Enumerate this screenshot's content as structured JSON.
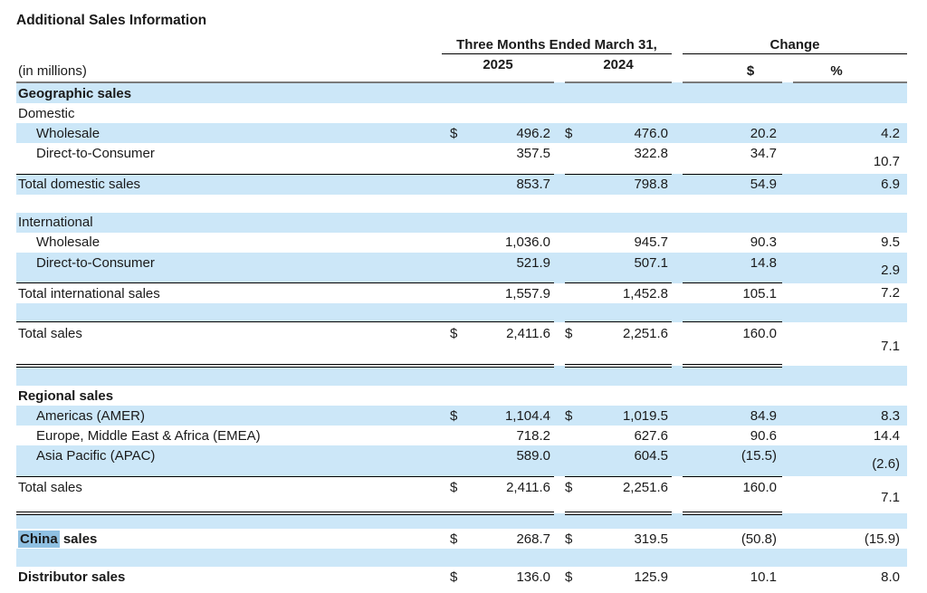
{
  "title": "Additional Sales Information",
  "colors": {
    "stripe": "#cce7f8",
    "china_highlight": "#8fc0e2",
    "header_rule": "#7a7a7a",
    "text": "#1a1a1a"
  },
  "table": {
    "period_header": "Three Months Ended March 31,",
    "change_header": "Change",
    "in_millions": "(in millions)",
    "year_2025": "2025",
    "year_2024": "2024",
    "dollar_header": "$",
    "percent_header": "%",
    "rows": [
      {
        "type": "section",
        "bg": "blue",
        "bold": true,
        "indent": 0,
        "label": "Geographic sales"
      },
      {
        "type": "data",
        "bg": "white",
        "indent": 0,
        "label": "Domestic"
      },
      {
        "type": "data",
        "bg": "blue",
        "indent": 1,
        "label": "Wholesale",
        "d1": "$",
        "v1": "496.2",
        "d2": "$",
        "v2": "476.0",
        "chg": "20.2",
        "pct": "4.2"
      },
      {
        "type": "ruled",
        "bg": "white",
        "indent": 1,
        "label": "Direct-to-Consumer",
        "v1": "357.5",
        "v2": "322.8",
        "chg": "34.7",
        "pct": "10.7"
      },
      {
        "type": "data",
        "bg": "blue",
        "indent": 0,
        "label": "Total domestic sales",
        "v1": "853.7",
        "v2": "798.8",
        "chg": "54.9",
        "pct": "6.9"
      },
      {
        "type": "blank",
        "bg": "white"
      },
      {
        "type": "data",
        "bg": "blue",
        "indent": 0,
        "label": "International"
      },
      {
        "type": "data",
        "bg": "white",
        "indent": 1,
        "label": "Wholesale",
        "v1": "1,036.0",
        "v2": "945.7",
        "chg": "90.3",
        "pct": "9.5"
      },
      {
        "type": "ruled",
        "bg": "blue",
        "indent": 1,
        "label": "Direct-to-Consumer",
        "v1": "521.9",
        "v2": "507.1",
        "chg": "14.8",
        "pct": "2.9"
      },
      {
        "type": "data",
        "bg": "white",
        "indent": 0,
        "label": "Total international sales",
        "v1": "1,557.9",
        "v2": "1,452.8",
        "chg": "105.1",
        "pct": "7.2"
      },
      {
        "type": "blank",
        "bg": "blue"
      },
      {
        "type": "grand",
        "bg": "white",
        "indent": 0,
        "label": "Total sales",
        "d1": "$",
        "v1": "2,411.6",
        "d2": "$",
        "v2": "2,251.6",
        "chg": "160.0",
        "pct": "7.1"
      },
      {
        "type": "blank",
        "bg": "blue"
      },
      {
        "type": "section",
        "bg": "white",
        "bold": true,
        "indent": 0,
        "label": "Regional sales"
      },
      {
        "type": "data",
        "bg": "blue",
        "indent": 1,
        "label": "Americas (AMER)",
        "d1": "$",
        "v1": "1,104.4",
        "d2": "$",
        "v2": "1,019.5",
        "chg": "84.9",
        "pct": "8.3"
      },
      {
        "type": "data",
        "bg": "white",
        "indent": 1,
        "label": "Europe, Middle East & Africa (EMEA)",
        "v1": "718.2",
        "v2": "627.6",
        "chg": "90.6",
        "pct": "14.4"
      },
      {
        "type": "ruled",
        "bg": "blue",
        "indent": 1,
        "label": "Asia Pacific (APAC)",
        "v1": "589.0",
        "v2": "604.5",
        "chg": "(15.5)",
        "pct": "(2.6)"
      },
      {
        "type": "total2",
        "bg": "white",
        "indent": 0,
        "label": "Total sales",
        "d1": "$",
        "v1": "2,411.6",
        "d2": "$",
        "v2": "2,251.6",
        "chg": "160.0",
        "pct": "7.1"
      },
      {
        "type": "blank",
        "bg": "blue",
        "small": true
      },
      {
        "type": "data",
        "bg": "white",
        "bold": true,
        "indent": 0,
        "label": "China sales",
        "highlight": "China",
        "d1": "$",
        "v1": "268.7",
        "d2": "$",
        "v2": "319.5",
        "chg": "(50.8)",
        "pct": "(15.9)"
      },
      {
        "type": "blank",
        "bg": "blue"
      },
      {
        "type": "data",
        "bg": "white",
        "bold": true,
        "indent": 0,
        "label": "Distributor sales",
        "d1": "$",
        "v1": "136.0",
        "d2": "$",
        "v2": "125.9",
        "chg": "10.1",
        "pct": "8.0"
      }
    ]
  }
}
